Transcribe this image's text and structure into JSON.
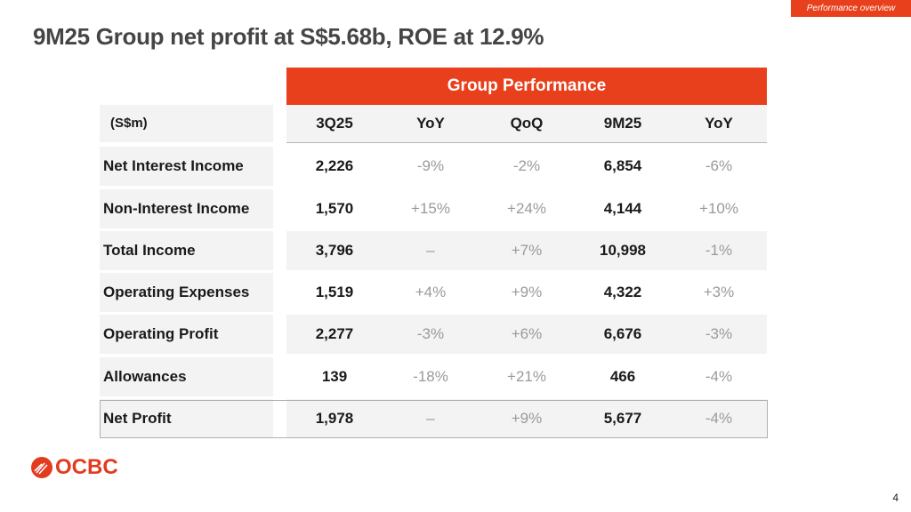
{
  "section_tag": "Performance overview",
  "title": "9M25 Group net profit at S$5.68b, ROE at 12.9%",
  "table": {
    "banner": "Group Performance",
    "headers": [
      "(S$m)",
      "3Q25",
      "YoY",
      "QoQ",
      "9M25",
      "YoY"
    ],
    "rows": [
      {
        "label": "Net Interest Income",
        "values": [
          "2,226",
          "-9%",
          "-2%",
          "6,854",
          "-6%"
        ]
      },
      {
        "label": "Non-Interest Income",
        "values": [
          "1,570",
          "+15%",
          "+24%",
          "4,144",
          "+10%"
        ]
      },
      {
        "label": "Total Income",
        "values": [
          "3,796",
          "–",
          "+7%",
          "10,998",
          "-1%"
        ]
      },
      {
        "label": "Operating Expenses",
        "values": [
          "1,519",
          "+4%",
          "+9%",
          "4,322",
          "+3%"
        ]
      },
      {
        "label": "Operating Profit",
        "values": [
          "2,277",
          "-3%",
          "+6%",
          "6,676",
          "-3%"
        ]
      },
      {
        "label": "Allowances",
        "values": [
          "139",
          "-18%",
          "+21%",
          "466",
          "-4%"
        ]
      },
      {
        "label": "Net Profit",
        "values": [
          "1,978",
          "–",
          "+9%",
          "5,677",
          "-4%"
        ]
      }
    ]
  },
  "logo": "OCBC",
  "page_number": "4",
  "colors": {
    "accent": "#e8401c"
  }
}
